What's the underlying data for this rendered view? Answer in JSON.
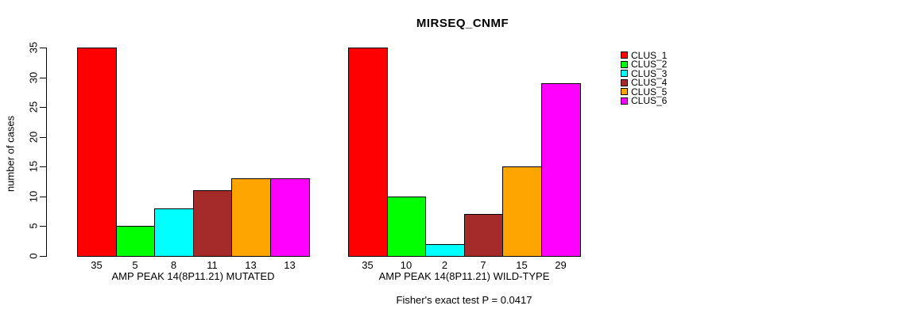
{
  "title": "MIRSEQ_CNMF",
  "ylabel": "number of cases",
  "footer": "Fisher's exact test P = 0.0417",
  "legend": {
    "position": "right",
    "items": [
      {
        "label": "CLUS_1",
        "color": "#FF0000"
      },
      {
        "label": "CLUS_2",
        "color": "#00FF00"
      },
      {
        "label": "CLUS_3",
        "color": "#00FFFF"
      },
      {
        "label": "CLUS_4",
        "color": "#A52A2A"
      },
      {
        "label": "CLUS_5",
        "color": "#FFA500"
      },
      {
        "label": "CLUS_6",
        "color": "#FF00FF"
      }
    ]
  },
  "chart_data": [
    {
      "type": "bar",
      "panel": "mutated",
      "xlabel": "AMP PEAK 14(8P11.21) MUTATED",
      "categories": [
        "CLUS_1",
        "CLUS_2",
        "CLUS_3",
        "CLUS_4",
        "CLUS_5",
        "CLUS_6"
      ],
      "values": [
        35,
        5,
        8,
        11,
        13,
        13
      ],
      "bar_value_labels": [
        "35",
        "5",
        "8",
        "11",
        "13",
        "13"
      ],
      "bar_colors": [
        "#FF0000",
        "#00FF00",
        "#00FFFF",
        "#A52A2A",
        "#FFA500",
        "#FF00FF"
      ],
      "ylim": [
        0,
        35
      ],
      "yticks": [
        0,
        5,
        10,
        15,
        20,
        25,
        30,
        35
      ],
      "show_y_axis": true,
      "grid": false
    },
    {
      "type": "bar",
      "panel": "wild-type",
      "xlabel": "AMP PEAK 14(8P11.21) WILD-TYPE",
      "categories": [
        "CLUS_1",
        "CLUS_2",
        "CLUS_3",
        "CLUS_4",
        "CLUS_5",
        "CLUS_6"
      ],
      "values": [
        35,
        10,
        2,
        7,
        15,
        29
      ],
      "bar_value_labels": [
        "35",
        "10",
        "2",
        "7",
        "15",
        "29"
      ],
      "bar_colors": [
        "#FF0000",
        "#00FF00",
        "#00FFFF",
        "#A52A2A",
        "#FFA500",
        "#FF00FF"
      ],
      "ylim": [
        0,
        35
      ],
      "yticks": [
        0,
        5,
        10,
        15,
        20,
        25,
        30,
        35
      ],
      "show_y_axis": false,
      "grid": false
    }
  ]
}
